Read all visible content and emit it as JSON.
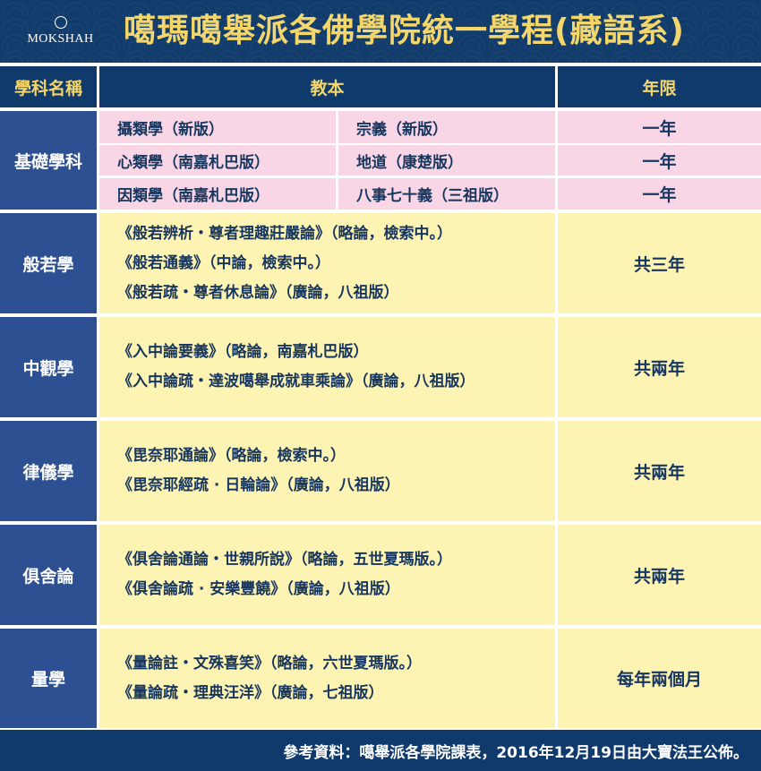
{
  "banner": {
    "logo_text": "MOKSHAH",
    "title": "噶瑪噶舉派各佛學院統一學程(藏語系)"
  },
  "header": {
    "subject": "學科名稱",
    "textbooks": "教本",
    "duration": "年限"
  },
  "basic": {
    "subject": "基礎學科",
    "rows": [
      {
        "a": "攝類學（新版）",
        "b": "宗義（新版）",
        "years": "一年"
      },
      {
        "a": "心類學（南嘉札巴版）",
        "b": "地道（康楚版）",
        "years": "一年"
      },
      {
        "a": "因類學（南嘉札巴版）",
        "b": "八事七十義（三祖版）",
        "years": "一年"
      }
    ]
  },
  "subjects": [
    {
      "name": "般若學",
      "books": [
        "《般若辨析・尊者理趣莊嚴論》（略論，檢索中。）",
        "《般若通義》（中論，檢索中。）",
        "《般若疏・尊者休息論》（廣論，八祖版）"
      ],
      "years": "共三年"
    },
    {
      "name": "中觀學",
      "books": [
        "《入中論要義》（略論，南嘉札巴版）",
        "《入中論疏・達波噶舉成就車乘論》（廣論，八祖版）"
      ],
      "years": "共兩年"
    },
    {
      "name": "律儀學",
      "books": [
        "《毘奈耶通論》（略論，檢索中。）",
        "《毘奈耶經疏 · 日輪論》（廣論，八祖版）"
      ],
      "years": "共兩年"
    },
    {
      "name": "俱舍論",
      "books": [
        "《俱舍論通論・世親所說》（略論，五世夏瑪版。）",
        "《俱舍論疏 · 安樂豐饒》（廣論，八祖版）"
      ],
      "years": "共兩年"
    },
    {
      "name": "量學",
      "books": [
        "《量論註・文殊喜笑》（略論，六世夏瑪版。）",
        "《量論疏・理典汪洋》（廣論，七祖版）"
      ],
      "years": "每年兩個月"
    }
  ],
  "footer": "參考資料：噶舉派各學院課表，2016年12月19日由大寶法王公佈。",
  "colors": {
    "navy": "#0f3a6b",
    "gold": "#f5d66a",
    "subject_blue": "#2c5091",
    "pink": "#f8d6e6",
    "yellow": "#fdf3b3",
    "text": "#17365f"
  }
}
